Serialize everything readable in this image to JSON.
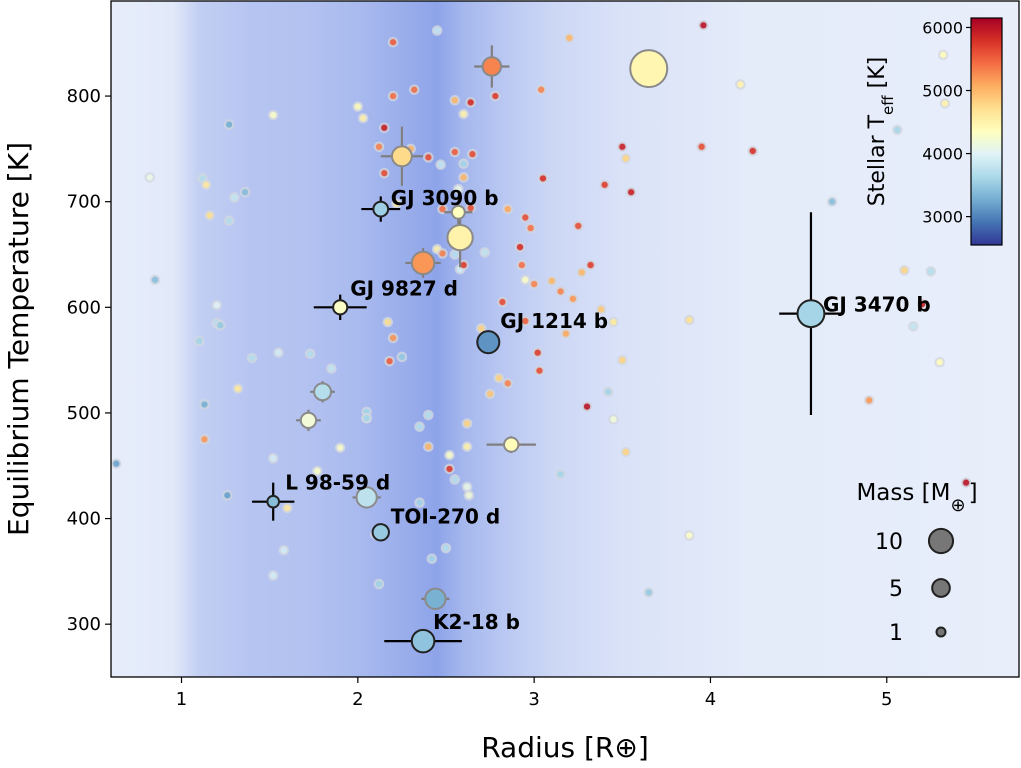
{
  "chart_data": {
    "type": "scatter",
    "xlabel": "Radius [R⊕]",
    "ylabel": "Equilibrium Temperature [K]",
    "xlim": [
      0.6,
      5.75
    ],
    "ylim": [
      250,
      890
    ],
    "x_ticks": [
      1,
      2,
      3,
      4,
      5
    ],
    "y_ticks": [
      300,
      400,
      500,
      600,
      700,
      800
    ],
    "colorbar": {
      "label": "Stellar T",
      "label_subscript": "eff",
      "label_unit": " [K]",
      "range": [
        2550,
        6150
      ],
      "ticks": [
        3000,
        4000,
        5000,
        6000
      ],
      "colormap": "RdYlBu_r"
    },
    "background": "radius valley density shading, darker blue near 1.2–2.8 R⊕, peak near 2.3–2.5 R⊕",
    "size_legend": {
      "title": "Mass [M",
      "title_symbol": "⊕",
      "title_close": "]",
      "entries": [
        {
          "label": "10",
          "mass": 10
        },
        {
          "label": "5",
          "mass": 5
        },
        {
          "label": "1",
          "mass": 1
        }
      ]
    },
    "labeled_planets": [
      {
        "name": "GJ 3090 b",
        "radius": 2.13,
        "teq": 693,
        "teff": 3550,
        "mass": 3.3,
        "xerr": 0.11,
        "yerr": 12
      },
      {
        "name": "GJ 9827 d",
        "radius": 1.9,
        "teq": 600,
        "teff": 4300,
        "mass": 3.0,
        "xerr": 0.15,
        "yerr": 12
      },
      {
        "name": "GJ 1214 b",
        "radius": 2.74,
        "teq": 567,
        "teff": 3100,
        "mass": 8.2,
        "xerr": 0.04,
        "yerr": 10
      },
      {
        "name": "GJ 3470 b",
        "radius": 4.57,
        "teq": 594,
        "teff": 3600,
        "mass": 12.6,
        "xerr": 0.18,
        "yerr": 96
      },
      {
        "name": "L 98-59 d",
        "radius": 1.52,
        "teq": 416,
        "teff": 3400,
        "mass": 1.9,
        "xerr": 0.12,
        "yerr": 18
      },
      {
        "name": "TOI-270 d",
        "radius": 2.13,
        "teq": 387,
        "teff": 3500,
        "mass": 4.2,
        "xerr": 0.0,
        "yerr": 0
      },
      {
        "name": "K2-18 b",
        "radius": 2.37,
        "teq": 284,
        "teff": 3450,
        "mass": 8.6,
        "xerr": 0.22,
        "yerr": 0
      }
    ],
    "other_highlighted": [
      {
        "radius": 3.65,
        "teq": 826,
        "teff": 4450,
        "mass": 25.0,
        "xerr": 0,
        "yerr": 0
      },
      {
        "radius": 2.76,
        "teq": 828,
        "teff": 5300,
        "mass": 5.5,
        "xerr": 0.1,
        "yerr": 20
      },
      {
        "radius": 2.25,
        "teq": 743,
        "teff": 4750,
        "mass": 6.5,
        "xerr": 0.12,
        "yerr": 28
      },
      {
        "radius": 2.57,
        "teq": 690,
        "teff": 4350,
        "mass": 2.4,
        "xerr": 0.08,
        "yerr": 14
      },
      {
        "radius": 2.58,
        "teq": 666,
        "teff": 4500,
        "mass": 11.0,
        "xerr": 0.0,
        "yerr": 28
      },
      {
        "radius": 2.37,
        "teq": 642,
        "teff": 5200,
        "mass": 8.5,
        "xerr": 0.1,
        "yerr": 14
      },
      {
        "radius": 1.8,
        "teq": 520,
        "teff": 3700,
        "mass": 4.5,
        "xerr": 0.07,
        "yerr": 10
      },
      {
        "radius": 1.72,
        "teq": 493,
        "teff": 4200,
        "mass": 3.6,
        "xerr": 0.07,
        "yerr": 10
      },
      {
        "radius": 2.87,
        "teq": 470,
        "teff": 4400,
        "mass": 3.1,
        "xerr": 0.14,
        "yerr": 8
      },
      {
        "radius": 2.05,
        "teq": 420,
        "teff": 3750,
        "mass": 6.8,
        "xerr": 0.08,
        "yerr": 10
      },
      {
        "radius": 2.44,
        "teq": 324,
        "teff": 3300,
        "mass": 6.9,
        "xerr": 0.08,
        "yerr": 10
      }
    ],
    "background_planets": [
      [
        0.63,
        452,
        3200
      ],
      [
        0.82,
        723,
        4100
      ],
      [
        0.85,
        626,
        3400
      ],
      [
        1.1,
        568,
        3600
      ],
      [
        1.13,
        475,
        5200
      ],
      [
        1.12,
        722,
        3700
      ],
      [
        1.14,
        716,
        4600
      ],
      [
        1.16,
        687,
        4700
      ],
      [
        1.2,
        602,
        4000
      ],
      [
        1.2,
        585,
        3700
      ],
      [
        1.22,
        583,
        3500
      ],
      [
        1.26,
        422,
        3200
      ],
      [
        1.27,
        773,
        3300
      ],
      [
        1.3,
        704,
        3800
      ],
      [
        1.32,
        523,
        4600
      ],
      [
        1.36,
        709,
        3400
      ],
      [
        1.4,
        552,
        3700
      ],
      [
        1.52,
        782,
        4300
      ],
      [
        1.52,
        457,
        3900
      ],
      [
        1.52,
        346,
        3900
      ],
      [
        1.55,
        557,
        3900
      ],
      [
        1.58,
        370,
        3900
      ],
      [
        1.6,
        410,
        4600
      ],
      [
        1.13,
        508,
        3300
      ],
      [
        1.27,
        682,
        3700
      ],
      [
        1.85,
        542,
        3800
      ],
      [
        1.9,
        467,
        4300
      ],
      [
        2.0,
        790,
        4400
      ],
      [
        2.03,
        779,
        4500
      ],
      [
        2.05,
        501,
        3600
      ],
      [
        2.05,
        495,
        3700
      ],
      [
        2.08,
        417,
        3900
      ],
      [
        2.1,
        385,
        3800
      ],
      [
        2.12,
        338,
        3600
      ],
      [
        2.12,
        752,
        5300
      ],
      [
        2.15,
        727,
        5600
      ],
      [
        2.17,
        586,
        4700
      ],
      [
        2.18,
        549,
        5500
      ],
      [
        2.2,
        571,
        5200
      ],
      [
        2.2,
        851,
        5500
      ],
      [
        2.2,
        800,
        5400
      ],
      [
        2.22,
        698,
        4600
      ],
      [
        2.25,
        553,
        3500
      ],
      [
        2.3,
        750,
        5000
      ],
      [
        2.32,
        806,
        5400
      ],
      [
        2.35,
        487,
        3700
      ],
      [
        2.35,
        415,
        3600
      ],
      [
        2.4,
        498,
        3700
      ],
      [
        2.4,
        468,
        5000
      ],
      [
        2.4,
        742,
        5600
      ],
      [
        2.42,
        362,
        3600
      ],
      [
        2.45,
        862,
        3800
      ],
      [
        2.47,
        735,
        3800
      ],
      [
        2.48,
        693,
        5400
      ],
      [
        2.5,
        372,
        3700
      ],
      [
        2.52,
        460,
        4300
      ],
      [
        2.52,
        447,
        5700
      ],
      [
        2.55,
        796,
        5000
      ],
      [
        2.55,
        747,
        5500
      ],
      [
        2.55,
        437,
        3700
      ],
      [
        2.58,
        636,
        3900
      ],
      [
        2.6,
        783,
        4500
      ],
      [
        2.6,
        736,
        3600
      ],
      [
        2.6,
        640,
        5700
      ],
      [
        2.6,
        723,
        5000
      ],
      [
        2.62,
        490,
        4800
      ],
      [
        2.62,
        468,
        4500
      ],
      [
        2.62,
        430,
        4100
      ],
      [
        2.63,
        422,
        4200
      ],
      [
        2.64,
        794,
        5800
      ],
      [
        2.65,
        745,
        5600
      ],
      [
        2.7,
        580,
        4800
      ],
      [
        2.72,
        652,
        3800
      ],
      [
        2.75,
        518,
        4900
      ],
      [
        2.78,
        800,
        5700
      ],
      [
        2.8,
        533,
        4800
      ],
      [
        2.82,
        605,
        5600
      ],
      [
        2.85,
        528,
        5300
      ],
      [
        2.85,
        693,
        5100
      ],
      [
        2.9,
        470,
        5600
      ],
      [
        2.92,
        657,
        5800
      ],
      [
        2.93,
        640,
        5400
      ],
      [
        2.95,
        587,
        5500
      ],
      [
        2.95,
        626,
        4300
      ],
      [
        2.95,
        685,
        5600
      ],
      [
        2.98,
        675,
        5400
      ],
      [
        3.0,
        622,
        5300
      ],
      [
        3.02,
        557,
        5700
      ],
      [
        3.03,
        540,
        5600
      ],
      [
        3.04,
        806,
        5300
      ],
      [
        3.05,
        722,
        5800
      ],
      [
        3.1,
        625,
        5000
      ],
      [
        3.15,
        442,
        3600
      ],
      [
        3.15,
        615,
        5300
      ],
      [
        3.18,
        575,
        5100
      ],
      [
        3.2,
        855,
        5000
      ],
      [
        3.22,
        608,
        5200
      ],
      [
        3.25,
        677,
        5600
      ],
      [
        3.27,
        633,
        5000
      ],
      [
        3.3,
        506,
        6000
      ],
      [
        3.32,
        640,
        5700
      ],
      [
        3.38,
        598,
        4900
      ],
      [
        3.4,
        716,
        5700
      ],
      [
        3.42,
        520,
        3600
      ],
      [
        3.45,
        494,
        4200
      ],
      [
        3.45,
        586,
        4600
      ],
      [
        3.5,
        752,
        5900
      ],
      [
        3.5,
        550,
        4800
      ],
      [
        3.52,
        741,
        4800
      ],
      [
        3.52,
        463,
        4800
      ],
      [
        3.55,
        709,
        5900
      ],
      [
        3.65,
        330,
        3500
      ],
      [
        3.88,
        384,
        4300
      ],
      [
        3.88,
        588,
        4700
      ],
      [
        3.95,
        752,
        5600
      ],
      [
        3.96,
        867,
        6000
      ],
      [
        4.17,
        811,
        4500
      ],
      [
        4.24,
        748,
        5800
      ],
      [
        4.69,
        700,
        3400
      ],
      [
        4.9,
        512,
        5200
      ],
      [
        5.06,
        768,
        3600
      ],
      [
        5.1,
        635,
        4800
      ],
      [
        5.15,
        582,
        3800
      ],
      [
        5.2,
        603,
        5900
      ],
      [
        5.25,
        634,
        3700
      ],
      [
        5.3,
        548,
        4400
      ],
      [
        5.32,
        839,
        4400
      ],
      [
        5.33,
        793,
        4500
      ],
      [
        5.45,
        434,
        6000
      ],
      [
        2.05,
        495,
        3600
      ],
      [
        1.73,
        556,
        3700
      ],
      [
        2.15,
        770,
        5900
      ],
      [
        2.57,
        712,
        4100
      ],
      [
        2.45,
        655,
        4500
      ],
      [
        2.48,
        651,
        5300
      ],
      [
        2.55,
        650,
        3700
      ],
      [
        2.64,
        694,
        5600
      ],
      [
        1.77,
        445,
        4300
      ]
    ]
  }
}
